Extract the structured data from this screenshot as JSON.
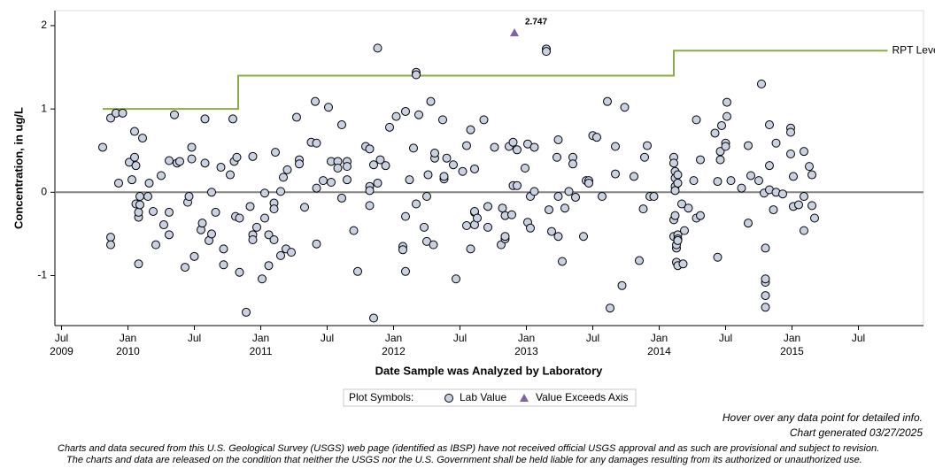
{
  "chart_data": {
    "type": "scatter",
    "y_label": "Concentration, in ug/L",
    "x_label": "Date Sample was Analyzed by Laboratory",
    "xlim": [
      2009.45,
      2015.99
    ],
    "ylim": [
      -1.6,
      2.18
    ],
    "yticks": [
      -1,
      0,
      1,
      2
    ],
    "xticks": [
      {
        "value": 2009.5,
        "label": "Jul",
        "year": "2009"
      },
      {
        "value": 2010.0,
        "label": "Jan",
        "year": "2010"
      },
      {
        "value": 2010.5,
        "label": "Jul"
      },
      {
        "value": 2011.0,
        "label": "Jan",
        "year": "2011"
      },
      {
        "value": 2011.5,
        "label": "Jul"
      },
      {
        "value": 2012.0,
        "label": "Jan",
        "year": "2012"
      },
      {
        "value": 2012.5,
        "label": "Jul"
      },
      {
        "value": 2013.0,
        "label": "Jan",
        "year": "2013"
      },
      {
        "value": 2013.5,
        "label": "Jul"
      },
      {
        "value": 2014.0,
        "label": "Jan",
        "year": "2014"
      },
      {
        "value": 2014.5,
        "label": "Jul"
      },
      {
        "value": 2015.0,
        "label": "Jan",
        "year": "2015"
      },
      {
        "value": 2015.5,
        "label": "Jul"
      }
    ],
    "reference_line": 0,
    "series": [
      {
        "name": "Lab Value",
        "color": "#c9d1e2",
        "x": [
          2009.81,
          2009.87,
          2009.87,
          2009.87,
          2009.91,
          2009.93,
          2009.96,
          2010.01,
          2010.03,
          2010.05,
          2010.05,
          2010.06,
          2010.06,
          2010.08,
          2010.08,
          2010.08,
          2010.09,
          2010.09,
          2010.11,
          2010.15,
          2010.16,
          2010.19,
          2010.21,
          2010.25,
          2010.27,
          2010.31,
          2010.31,
          2010.31,
          2010.35,
          2010.37,
          2010.39,
          2010.43,
          2010.45,
          2010.46,
          2010.48,
          2010.48,
          2010.5,
          2010.55,
          2010.56,
          2010.58,
          2010.58,
          2010.61,
          2010.63,
          2010.63,
          2010.66,
          2010.7,
          2010.72,
          2010.72,
          2010.77,
          2010.79,
          2010.8,
          2010.81,
          2010.82,
          2010.84,
          2010.84,
          2010.89,
          2010.92,
          2010.94,
          2010.94,
          2010.94,
          2010.97,
          2011.01,
          2011.03,
          2011.03,
          2011.06,
          2011.06,
          2011.1,
          2011.1,
          2011.1,
          2011.11,
          2011.15,
          2011.15,
          2011.17,
          2011.19,
          2011.2,
          2011.23,
          2011.27,
          2011.29,
          2011.29,
          2011.33,
          2011.38,
          2011.41,
          2011.42,
          2011.42,
          2011.42,
          2011.47,
          2011.51,
          2011.53,
          2011.53,
          2011.58,
          2011.58,
          2011.61,
          2011.61,
          2011.65,
          2011.65,
          2011.65,
          2011.7,
          2011.73,
          2011.79,
          2011.82,
          2011.82,
          2011.82,
          2011.82,
          2011.85,
          2011.85,
          2011.88,
          2011.88,
          2011.9,
          2011.94,
          2011.97,
          2012.02,
          2012.07,
          2012.07,
          2012.09,
          2012.09,
          2012.09,
          2012.12,
          2012.15,
          2012.17,
          2012.17,
          2012.17,
          2012.19,
          2012.23,
          2012.25,
          2012.25,
          2012.26,
          2012.28,
          2012.3,
          2012.31,
          2012.31,
          2012.37,
          2012.38,
          2012.38,
          2012.4,
          2012.45,
          2012.47,
          2012.52,
          2012.55,
          2012.55,
          2012.58,
          2012.58,
          2012.61,
          2012.61,
          2012.61,
          2012.61,
          2012.63,
          2012.68,
          2012.71,
          2012.71,
          2012.76,
          2012.81,
          2012.82,
          2012.84,
          2012.84,
          2012.84,
          2012.87,
          2012.89,
          2012.9,
          2012.9,
          2012.93,
          2012.93,
          2012.99,
          2013.01,
          2013.01,
          2013.03,
          2013.03,
          2013.06,
          2013.06,
          2013.15,
          2013.15,
          2013.17,
          2013.19,
          2013.23,
          2013.24,
          2013.24,
          2013.24,
          2013.27,
          2013.29,
          2013.32,
          2013.35,
          2013.35,
          2013.37,
          2013.43,
          2013.45,
          2013.47,
          2013.47,
          2013.5,
          2013.53,
          2013.57,
          2013.61,
          2013.63,
          2013.67,
          2013.67,
          2013.72,
          2013.74,
          2013.81,
          2013.85,
          2013.88,
          2013.89,
          2013.91,
          2013.93,
          2013.96,
          2014.11,
          2014.11,
          2014.11,
          2014.11,
          2014.12,
          2014.12,
          2014.12,
          2014.12,
          2014.12,
          2014.13,
          2014.13,
          2014.13,
          2014.14,
          2014.14,
          2014.14,
          2014.14,
          2014.14,
          2014.14,
          2014.17,
          2014.18,
          2014.19,
          2014.22,
          2014.26,
          2014.28,
          2014.28,
          2014.31,
          2014.31,
          2014.42,
          2014.44,
          2014.44,
          2014.46,
          2014.46,
          2014.47,
          2014.5,
          2014.5,
          2014.51,
          2014.51,
          2014.54,
          2014.62,
          2014.67,
          2014.67,
          2014.69,
          2014.75,
          2014.77,
          2014.79,
          2014.8,
          2014.8,
          2014.8,
          2014.8,
          2014.8,
          2014.83,
          2014.83,
          2014.83,
          2014.86,
          2014.88,
          2014.88,
          2014.93,
          2014.99,
          2014.99,
          2014.99,
          2015.01,
          2015.01,
          2015.05,
          2015.09,
          2015.09,
          2015.09,
          2015.13,
          2015.15,
          2015.15,
          2015.17
        ],
        "values": [
          0.54,
          0.89,
          -0.54,
          -0.63,
          0.95,
          0.11,
          0.95,
          0.36,
          0.15,
          0.73,
          0.42,
          0.32,
          -0.14,
          -0.3,
          -0.24,
          -0.86,
          -0.05,
          -0.15,
          0.65,
          -0.05,
          0.11,
          -0.23,
          -0.63,
          0.2,
          -0.39,
          -0.24,
          -0.51,
          0.38,
          0.93,
          0.35,
          0.37,
          -0.9,
          -0.12,
          -0.05,
          0.54,
          0.4,
          -0.77,
          -0.45,
          -0.37,
          0.88,
          0.35,
          -0.58,
          -0.5,
          0.0,
          -0.24,
          0.3,
          -0.68,
          -0.87,
          0.21,
          0.88,
          0.37,
          -0.29,
          0.42,
          -0.96,
          -0.31,
          -1.44,
          -0.17,
          0.43,
          -0.51,
          -0.57,
          -0.42,
          -1.04,
          -0.31,
          -0.01,
          -0.51,
          -0.88,
          -0.13,
          -0.2,
          -0.57,
          0.48,
          0.01,
          -0.76,
          0.18,
          -0.68,
          0.27,
          -0.72,
          0.9,
          0.39,
          0.34,
          -0.18,
          0.6,
          1.09,
          0.05,
          -0.62,
          0.59,
          0.14,
          1.02,
          0.37,
          0.12,
          0.37,
          0.29,
          -0.07,
          0.81,
          0.37,
          0.31,
          0.15,
          -0.46,
          -0.95,
          0.55,
          0.52,
          0.07,
          0.02,
          -0.16,
          0.33,
          -1.51,
          1.73,
          0.11,
          0.39,
          0.32,
          0.78,
          0.91,
          -0.65,
          -0.69,
          0.97,
          -0.29,
          -0.95,
          0.15,
          0.53,
          1.44,
          1.41,
          -0.14,
          0.93,
          -0.42,
          -0.05,
          -0.59,
          0.21,
          1.09,
          -0.63,
          0.41,
          0.47,
          0.87,
          0.16,
          0.19,
          0.41,
          0.33,
          -1.04,
          0.25,
          -0.4,
          0.56,
          -0.68,
          0.75,
          0.28,
          -0.24,
          -0.39,
          -0.23,
          -0.31,
          0.87,
          -0.42,
          -0.17,
          0.54,
          -0.63,
          -0.19,
          -0.28,
          -0.56,
          -0.53,
          0.55,
          -0.27,
          0.6,
          0.08,
          0.51,
          0.08,
          0.29,
          0.58,
          -0.36,
          -0.43,
          -0.05,
          0.01,
          0.54,
          1.72,
          1.69,
          -0.21,
          -0.47,
          0.42,
          0.63,
          -0.05,
          -0.53,
          -0.83,
          -0.19,
          0.01,
          0.42,
          0.34,
          -0.06,
          -0.53,
          0.14,
          0.14,
          0.11,
          0.68,
          0.66,
          -0.05,
          1.09,
          -1.39,
          0.22,
          0.55,
          -1.12,
          1.02,
          0.19,
          -0.82,
          -0.2,
          0.42,
          0.56,
          -0.05,
          -0.05,
          0.42,
          -0.33,
          -0.53,
          0.35,
          0.25,
          -0.28,
          0.07,
          0.02,
          0.17,
          -0.67,
          -0.84,
          -0.63,
          0.21,
          -0.88,
          0.11,
          -0.51,
          -0.56,
          -0.58,
          -0.14,
          -0.86,
          -0.46,
          -0.19,
          0.14,
          0.87,
          -0.31,
          0.39,
          -0.28,
          0.71,
          0.13,
          -0.78,
          0.49,
          0.39,
          0.8,
          0.59,
          0.55,
          1.08,
          0.91,
          0.14,
          0.05,
          -0.37,
          0.56,
          0.2,
          0.14,
          1.3,
          -0.01,
          -1.38,
          -1.24,
          -1.08,
          -1.04,
          -0.67,
          0.81,
          0.03,
          0.32,
          -0.21,
          0.0,
          0.59,
          -0.02,
          0.77,
          0.72,
          0.46,
          0.19,
          -0.17,
          -0.15,
          0.49,
          -0.05,
          -0.46,
          0.31,
          0.21,
          -0.16,
          -0.31
        ]
      }
    ],
    "rpt": {
      "name": "RPT Level",
      "color": "#8aab47",
      "x": [
        2009.81,
        2010.83,
        2010.83,
        2014.11,
        2014.11,
        2015.72
      ],
      "values": [
        1.0,
        1.0,
        1.4,
        1.4,
        1.7,
        1.7
      ]
    },
    "exceeds": {
      "name": "Value Exceeds Axis",
      "color": "#7e63a8",
      "x": 2012.91,
      "value": 2.747
    },
    "legend_title": "Plot Symbols:",
    "notes": [
      "Hover over any data point for detailed info.",
      "Chart generated 03/27/2025"
    ],
    "disclaimer": [
      "Charts and data secured from this U.S. Geological Survey (USGS) web page (identified as IBSP) have not received official USGS approval and as such are provisional and subject to revision.",
      "The charts and data are released on the condition that neither the USGS nor the U.S. Government shall be held liable for any damages resulting from its authorized or unauthorized use."
    ]
  }
}
